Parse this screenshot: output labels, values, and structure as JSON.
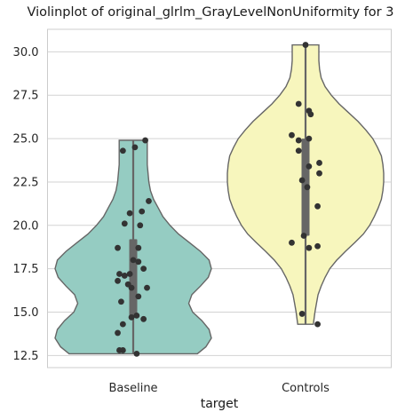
{
  "chart_data": {
    "type": "violin",
    "title": "Violinplot of original_glrlm_GrayLevelNonUniformity for 3",
    "xlabel": "target",
    "ylabel": "",
    "ylim": [
      11.8,
      31.3
    ],
    "yticks": [
      "12.5",
      "15.0",
      "17.5",
      "20.0",
      "22.5",
      "25.0",
      "27.5",
      "30.0"
    ],
    "grid": true,
    "categories": [
      "Baseline",
      "Controls"
    ],
    "colors": {
      "Baseline": "#95ccc2",
      "Controls": "#f7f6bd",
      "outline": "#666666",
      "box": "#666666",
      "points": "#333333",
      "grid": "#d3d3d3"
    },
    "violins": [
      {
        "category": "Baseline",
        "min": 12.6,
        "q1": 14.8,
        "median": 17.8,
        "q3": 19.2,
        "max": 24.9,
        "density": [
          [
            12.6,
            0.82
          ],
          [
            13.0,
            0.93
          ],
          [
            13.5,
            1.0
          ],
          [
            14.0,
            0.97
          ],
          [
            14.5,
            0.88
          ],
          [
            15.0,
            0.76
          ],
          [
            15.5,
            0.71
          ],
          [
            16.0,
            0.75
          ],
          [
            16.5,
            0.86
          ],
          [
            17.0,
            0.96
          ],
          [
            17.5,
            1.0
          ],
          [
            18.0,
            0.97
          ],
          [
            18.5,
            0.86
          ],
          [
            19.0,
            0.72
          ],
          [
            19.5,
            0.58
          ],
          [
            20.0,
            0.47
          ],
          [
            20.5,
            0.38
          ],
          [
            21.0,
            0.32
          ],
          [
            21.5,
            0.26
          ],
          [
            22.0,
            0.22
          ],
          [
            22.5,
            0.2
          ],
          [
            23.0,
            0.19
          ],
          [
            23.5,
            0.18
          ],
          [
            24.0,
            0.18
          ],
          [
            24.5,
            0.18
          ],
          [
            24.9,
            0.18
          ]
        ],
        "points": [
          [
            0.07,
            24.9
          ],
          [
            -0.06,
            24.3
          ],
          [
            0.01,
            24.5
          ],
          [
            0.09,
            21.4
          ],
          [
            0.05,
            20.8
          ],
          [
            -0.02,
            20.7
          ],
          [
            -0.05,
            20.1
          ],
          [
            0.04,
            20.0
          ],
          [
            -0.09,
            18.7
          ],
          [
            0.03,
            18.7
          ],
          [
            0.0,
            18.0
          ],
          [
            0.03,
            17.9
          ],
          [
            -0.08,
            17.2
          ],
          [
            -0.05,
            17.1
          ],
          [
            -0.02,
            17.2
          ],
          [
            0.06,
            17.5
          ],
          [
            -0.09,
            16.8
          ],
          [
            -0.03,
            16.6
          ],
          [
            0.08,
            16.4
          ],
          [
            -0.01,
            16.4
          ],
          [
            -0.07,
            15.6
          ],
          [
            0.03,
            15.9
          ],
          [
            0.02,
            14.8
          ],
          [
            -0.01,
            14.7
          ],
          [
            0.06,
            14.6
          ],
          [
            -0.06,
            14.3
          ],
          [
            -0.09,
            13.8
          ],
          [
            -0.08,
            12.8
          ],
          [
            -0.06,
            12.8
          ],
          [
            0.02,
            12.6
          ]
        ]
      },
      {
        "category": "Controls",
        "min": 14.3,
        "q1": 19.4,
        "median": 22.5,
        "q3": 25.0,
        "max": 30.4,
        "density": [
          [
            14.3,
            0.1
          ],
          [
            15.0,
            0.12
          ],
          [
            15.5,
            0.14
          ],
          [
            16.0,
            0.16
          ],
          [
            16.5,
            0.2
          ],
          [
            17.0,
            0.25
          ],
          [
            17.5,
            0.31
          ],
          [
            18.0,
            0.4
          ],
          [
            18.5,
            0.51
          ],
          [
            19.0,
            0.63
          ],
          [
            19.5,
            0.74
          ],
          [
            20.0,
            0.82
          ],
          [
            20.5,
            0.88
          ],
          [
            21.0,
            0.93
          ],
          [
            21.5,
            0.97
          ],
          [
            22.0,
            0.99
          ],
          [
            22.5,
            1.0
          ],
          [
            23.0,
            1.0
          ],
          [
            23.5,
            0.99
          ],
          [
            24.0,
            0.97
          ],
          [
            24.5,
            0.92
          ],
          [
            25.0,
            0.86
          ],
          [
            25.5,
            0.77
          ],
          [
            26.0,
            0.67
          ],
          [
            26.5,
            0.55
          ],
          [
            27.0,
            0.43
          ],
          [
            27.5,
            0.33
          ],
          [
            28.0,
            0.25
          ],
          [
            28.5,
            0.2
          ],
          [
            29.0,
            0.18
          ],
          [
            29.5,
            0.17
          ],
          [
            30.0,
            0.17
          ],
          [
            30.4,
            0.17
          ]
        ],
        "points": [
          [
            0.0,
            30.4
          ],
          [
            -0.04,
            27.0
          ],
          [
            0.02,
            26.6
          ],
          [
            0.03,
            26.4
          ],
          [
            -0.08,
            25.2
          ],
          [
            -0.04,
            24.9
          ],
          [
            0.02,
            25.0
          ],
          [
            -0.04,
            24.3
          ],
          [
            0.08,
            23.6
          ],
          [
            0.02,
            23.4
          ],
          [
            0.08,
            23.0
          ],
          [
            -0.02,
            22.6
          ],
          [
            0.01,
            22.2
          ],
          [
            0.07,
            21.1
          ],
          [
            -0.01,
            19.4
          ],
          [
            -0.08,
            19.0
          ],
          [
            0.07,
            18.8
          ],
          [
            0.02,
            18.7
          ],
          [
            -0.02,
            14.9
          ],
          [
            0.07,
            14.3
          ]
        ]
      }
    ]
  }
}
